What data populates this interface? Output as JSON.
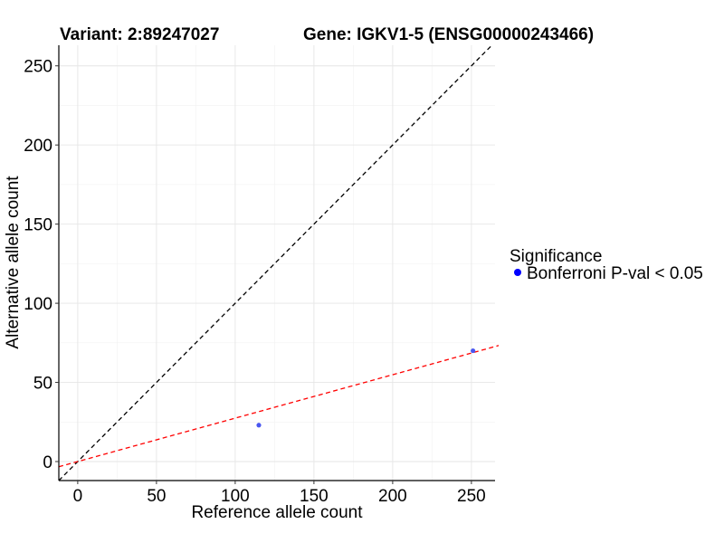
{
  "chart_data": {
    "type": "scatter",
    "title_left": "Variant: 2:89247027",
    "title_right": "Gene: IGKV1-5 (ENSG00000243466)",
    "xlabel": "Reference allele count",
    "ylabel": "Alternative allele count",
    "xlim": [
      -12,
      265
    ],
    "ylim": [
      -12,
      263
    ],
    "x_ticks": [
      0,
      50,
      100,
      150,
      200,
      250
    ],
    "y_ticks": [
      0,
      50,
      100,
      150,
      200,
      250
    ],
    "x_minor": [
      25,
      75,
      125,
      175,
      225
    ],
    "y_minor": [
      25,
      75,
      125,
      175,
      225
    ],
    "grid": true,
    "series": [
      {
        "name": "Bonferroni P-val < 0.05",
        "points": [
          {
            "x": 115,
            "y": 23
          },
          {
            "x": 251,
            "y": 70
          }
        ]
      }
    ],
    "reference_lines": [
      {
        "name": "identity",
        "slope": 1,
        "intercept": 0,
        "color": "#000000",
        "style": "dashed"
      },
      {
        "name": "fit",
        "slope": 0.2735,
        "intercept": 0,
        "color": "#ff0000",
        "style": "dashed"
      }
    ],
    "point_color": "#4a57f0",
    "legend": {
      "title": "Significance",
      "entries": [
        {
          "label": "Bonferroni P-val < 0.05",
          "color": "#0000ff"
        }
      ],
      "position": "right"
    }
  }
}
